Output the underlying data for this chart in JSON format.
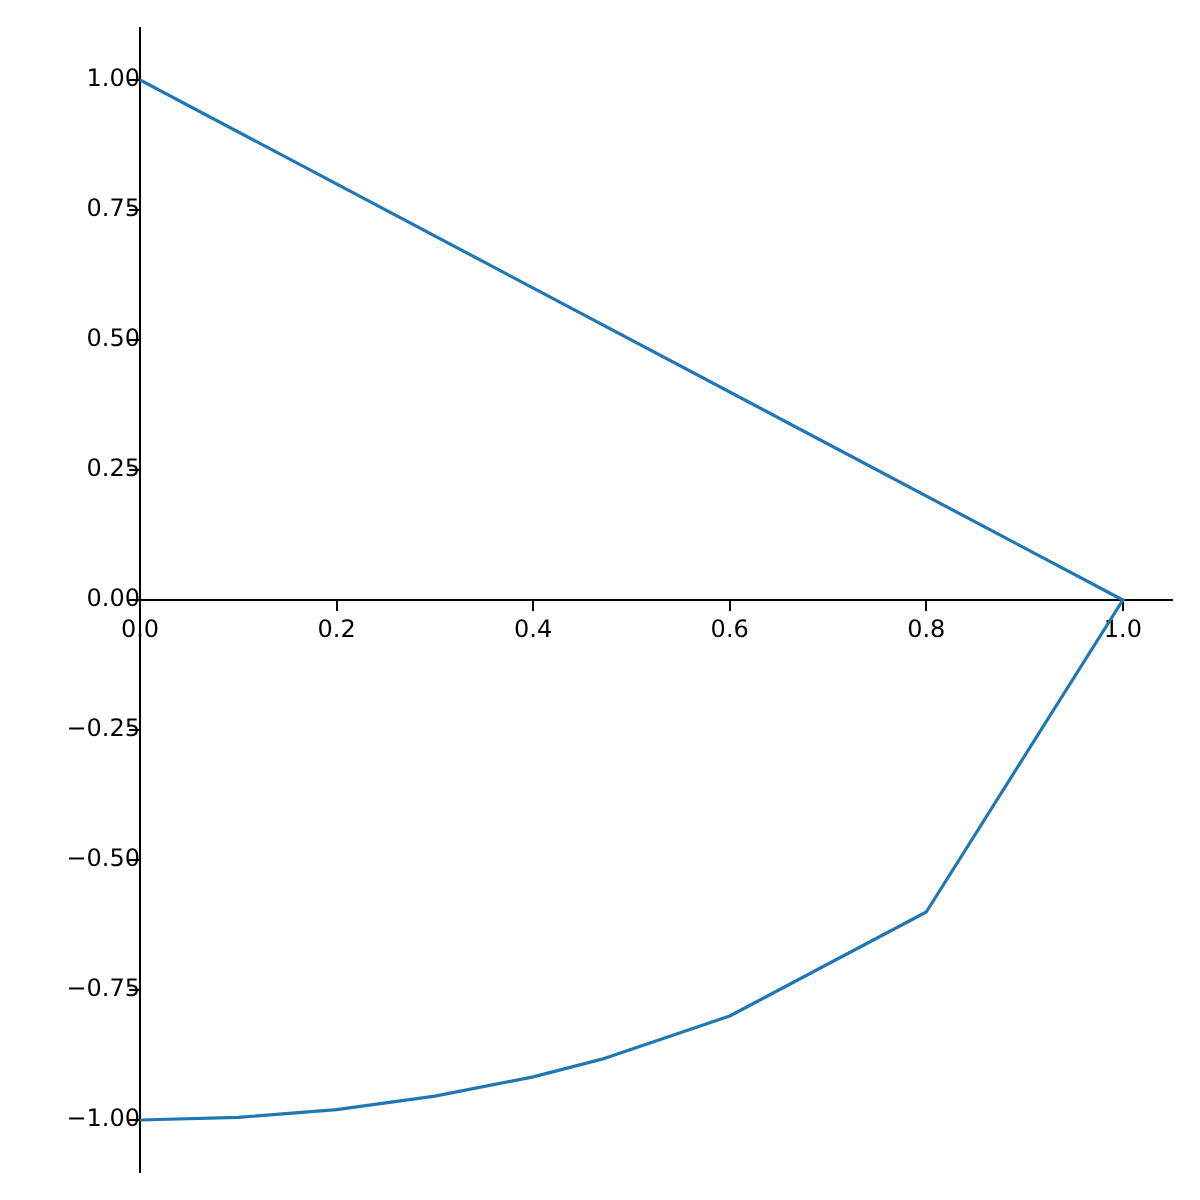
{
  "chart_data": {
    "type": "line",
    "series": [
      {
        "color": "#1f77b4",
        "x": [
          0,
          1
        ],
        "values": [
          1,
          0
        ]
      },
      {
        "color": "#1f77b4",
        "x": [
          0,
          0.1,
          0.2,
          0.3,
          0.4,
          0.47,
          0.6,
          0.8,
          1.0
        ],
        "values": [
          -1,
          -0.995,
          -0.98,
          -0.954,
          -0.917,
          -0.883,
          -0.8,
          -0.6,
          0
        ]
      }
    ],
    "xlim": [
      0,
      1.05
    ],
    "ylim": [
      -1.1,
      1.1
    ],
    "xticks": [
      {
        "value": 0,
        "label": "0.0"
      },
      {
        "value": 0.2,
        "label": "0.2"
      },
      {
        "value": 0.4,
        "label": "0.4"
      },
      {
        "value": 0.6,
        "label": "0.6"
      },
      {
        "value": 0.8,
        "label": "0.8"
      },
      {
        "value": 1.0,
        "label": "1.0"
      }
    ],
    "yticks": [
      {
        "value": -1,
        "label": "−1.00"
      },
      {
        "value": -0.75,
        "label": "−0.75"
      },
      {
        "value": -0.5,
        "label": "−0.50"
      },
      {
        "value": -0.25,
        "label": "−0.25"
      },
      {
        "value": 0,
        "label": "0.00"
      },
      {
        "value": 0.25,
        "label": "0.25"
      },
      {
        "value": 0.5,
        "label": "0.50"
      },
      {
        "value": 0.75,
        "label": "0.75"
      },
      {
        "value": 1,
        "label": "1.00"
      }
    ],
    "grid": false,
    "legend": false,
    "marker": "none",
    "line_style": "solid"
  }
}
